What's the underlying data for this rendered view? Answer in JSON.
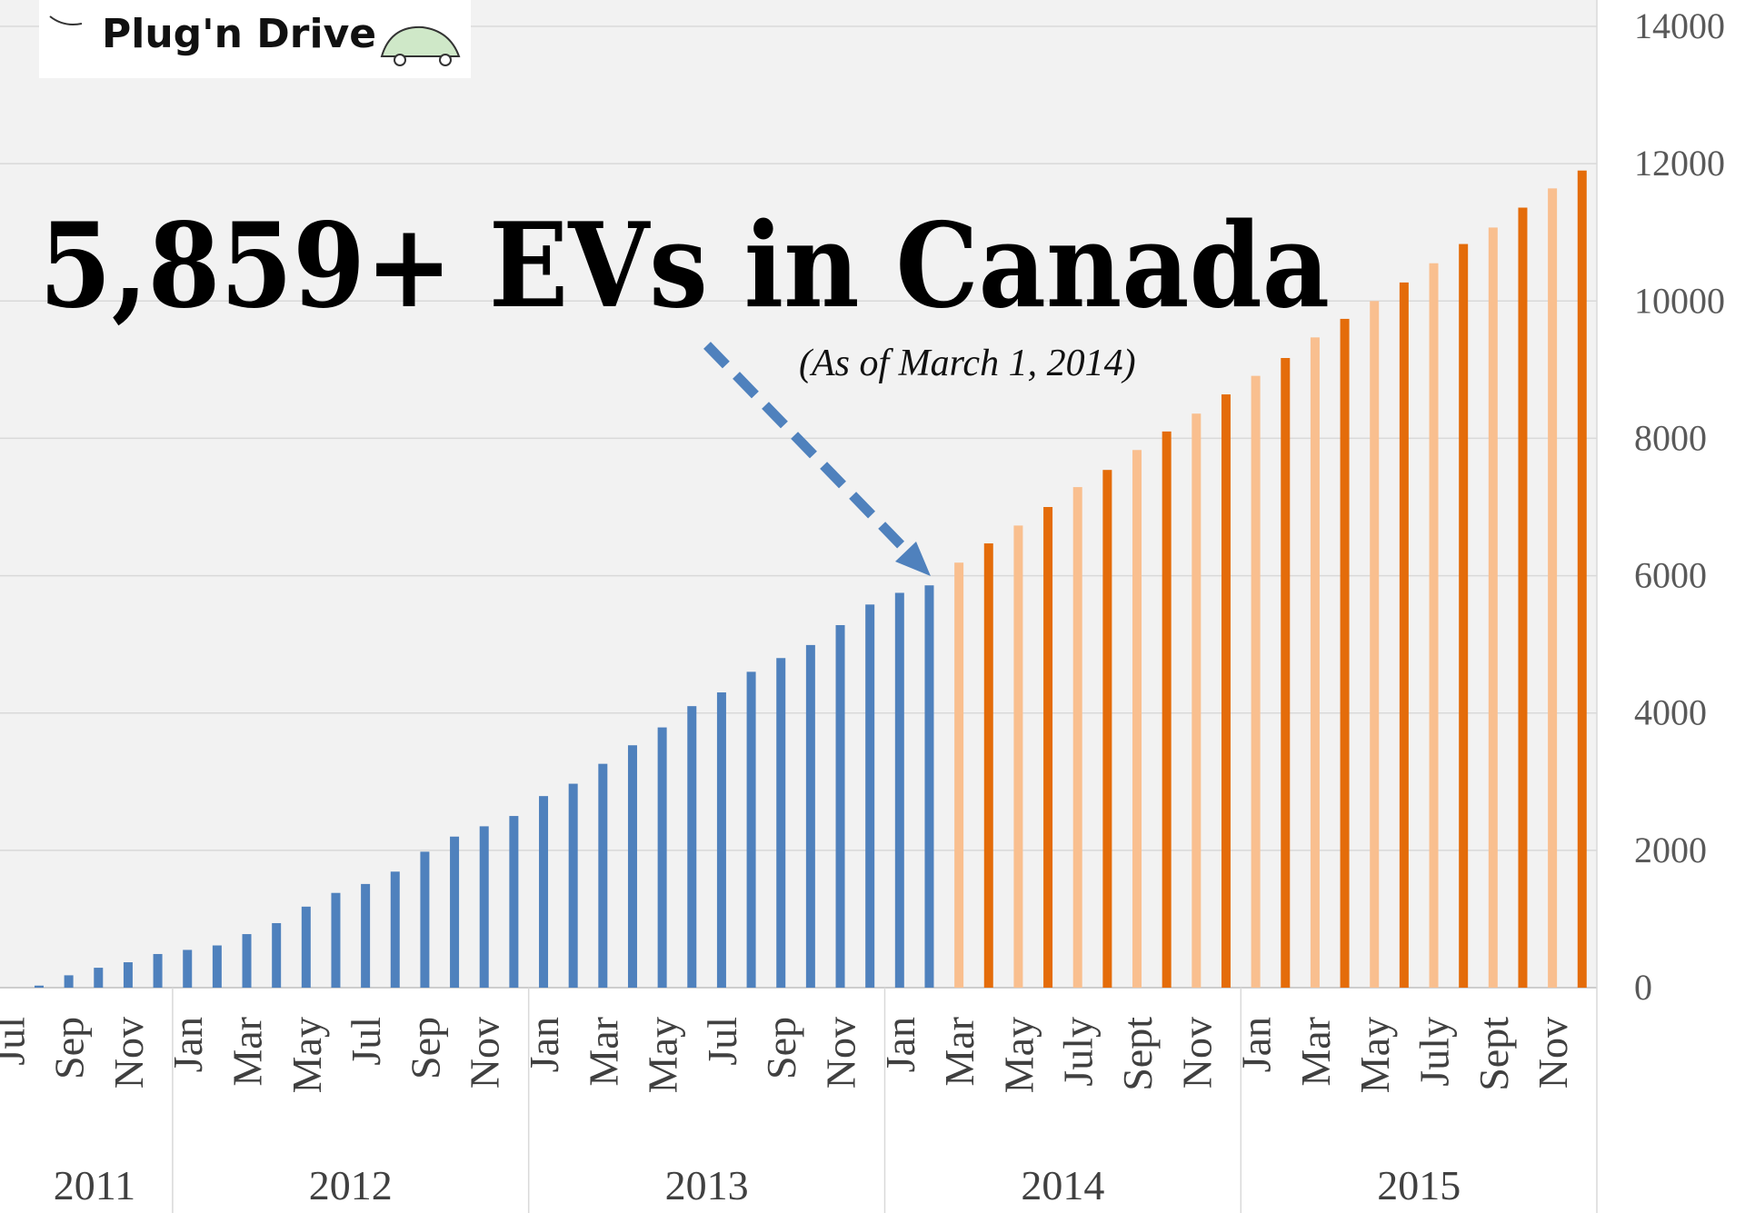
{
  "chart_data": {
    "type": "bar",
    "title": "5,859+ EVs in Canada",
    "annotation": "(As of March 1, 2014)",
    "logo": "Plug'n Drive",
    "categories": [
      "Jul",
      null,
      "Sep",
      null,
      "Nov",
      null,
      "Jan",
      null,
      "Mar",
      null,
      "May",
      null,
      "Jul",
      null,
      "Sep",
      null,
      "Nov",
      null,
      "Jan",
      null,
      "Mar",
      null,
      "May",
      null,
      "Jul",
      null,
      "Sep",
      null,
      "Nov",
      null,
      "Jan",
      null,
      "Mar",
      null,
      "May",
      null,
      "July",
      null,
      "Sept",
      null,
      "Nov",
      null,
      "Jan",
      null,
      "Mar",
      null,
      "May",
      null,
      "July",
      null,
      "Sept",
      null,
      "Nov",
      null
    ],
    "x_groups": [
      {
        "label": "2011",
        "span": 6
      },
      {
        "label": "2012",
        "span": 12
      },
      {
        "label": "2013",
        "span": 12
      },
      {
        "label": "2014",
        "span": 12
      },
      {
        "label": "2015",
        "span": 12
      }
    ],
    "values": [
      0,
      30,
      180,
      290,
      370,
      490,
      550,
      615,
      780,
      940,
      1180,
      1380,
      1510,
      1690,
      1980,
      2200,
      2350,
      2500,
      2790,
      2970,
      3260,
      3530,
      3790,
      4100,
      4300,
      4600,
      4800,
      4990,
      5280,
      5580,
      5750,
      5859,
      6190,
      6470,
      6730,
      7000,
      7290,
      7540,
      7830,
      8100,
      8360,
      8640,
      8910,
      9170,
      9470,
      9740,
      10000,
      10270,
      10550,
      10830,
      11070,
      11360,
      11640,
      11900
    ],
    "colors": [
      "#4f81bd",
      "#4f81bd",
      "#4f81bd",
      "#4f81bd",
      "#4f81bd",
      "#4f81bd",
      "#4f81bd",
      "#4f81bd",
      "#4f81bd",
      "#4f81bd",
      "#4f81bd",
      "#4f81bd",
      "#4f81bd",
      "#4f81bd",
      "#4f81bd",
      "#4f81bd",
      "#4f81bd",
      "#4f81bd",
      "#4f81bd",
      "#4f81bd",
      "#4f81bd",
      "#4f81bd",
      "#4f81bd",
      "#4f81bd",
      "#4f81bd",
      "#4f81bd",
      "#4f81bd",
      "#4f81bd",
      "#4f81bd",
      "#4f81bd",
      "#4f81bd",
      "#4f81bd",
      "#f9bf8f",
      "#e46c0a",
      "#f9bf8f",
      "#e46c0a",
      "#f9bf8f",
      "#e46c0a",
      "#f9bf8f",
      "#e46c0a",
      "#f9bf8f",
      "#e46c0a",
      "#f9bf8f",
      "#e46c0a",
      "#f9bf8f",
      "#e46c0a",
      "#f9bf8f",
      "#e46c0a",
      "#f9bf8f",
      "#e46c0a",
      "#f9bf8f",
      "#e46c0a",
      "#f9bf8f",
      "#e46c0a"
    ],
    "ylim": [
      0,
      14000
    ],
    "yticks": [
      0,
      2000,
      4000,
      6000,
      8000,
      10000,
      12000,
      14000
    ],
    "grid": true
  }
}
